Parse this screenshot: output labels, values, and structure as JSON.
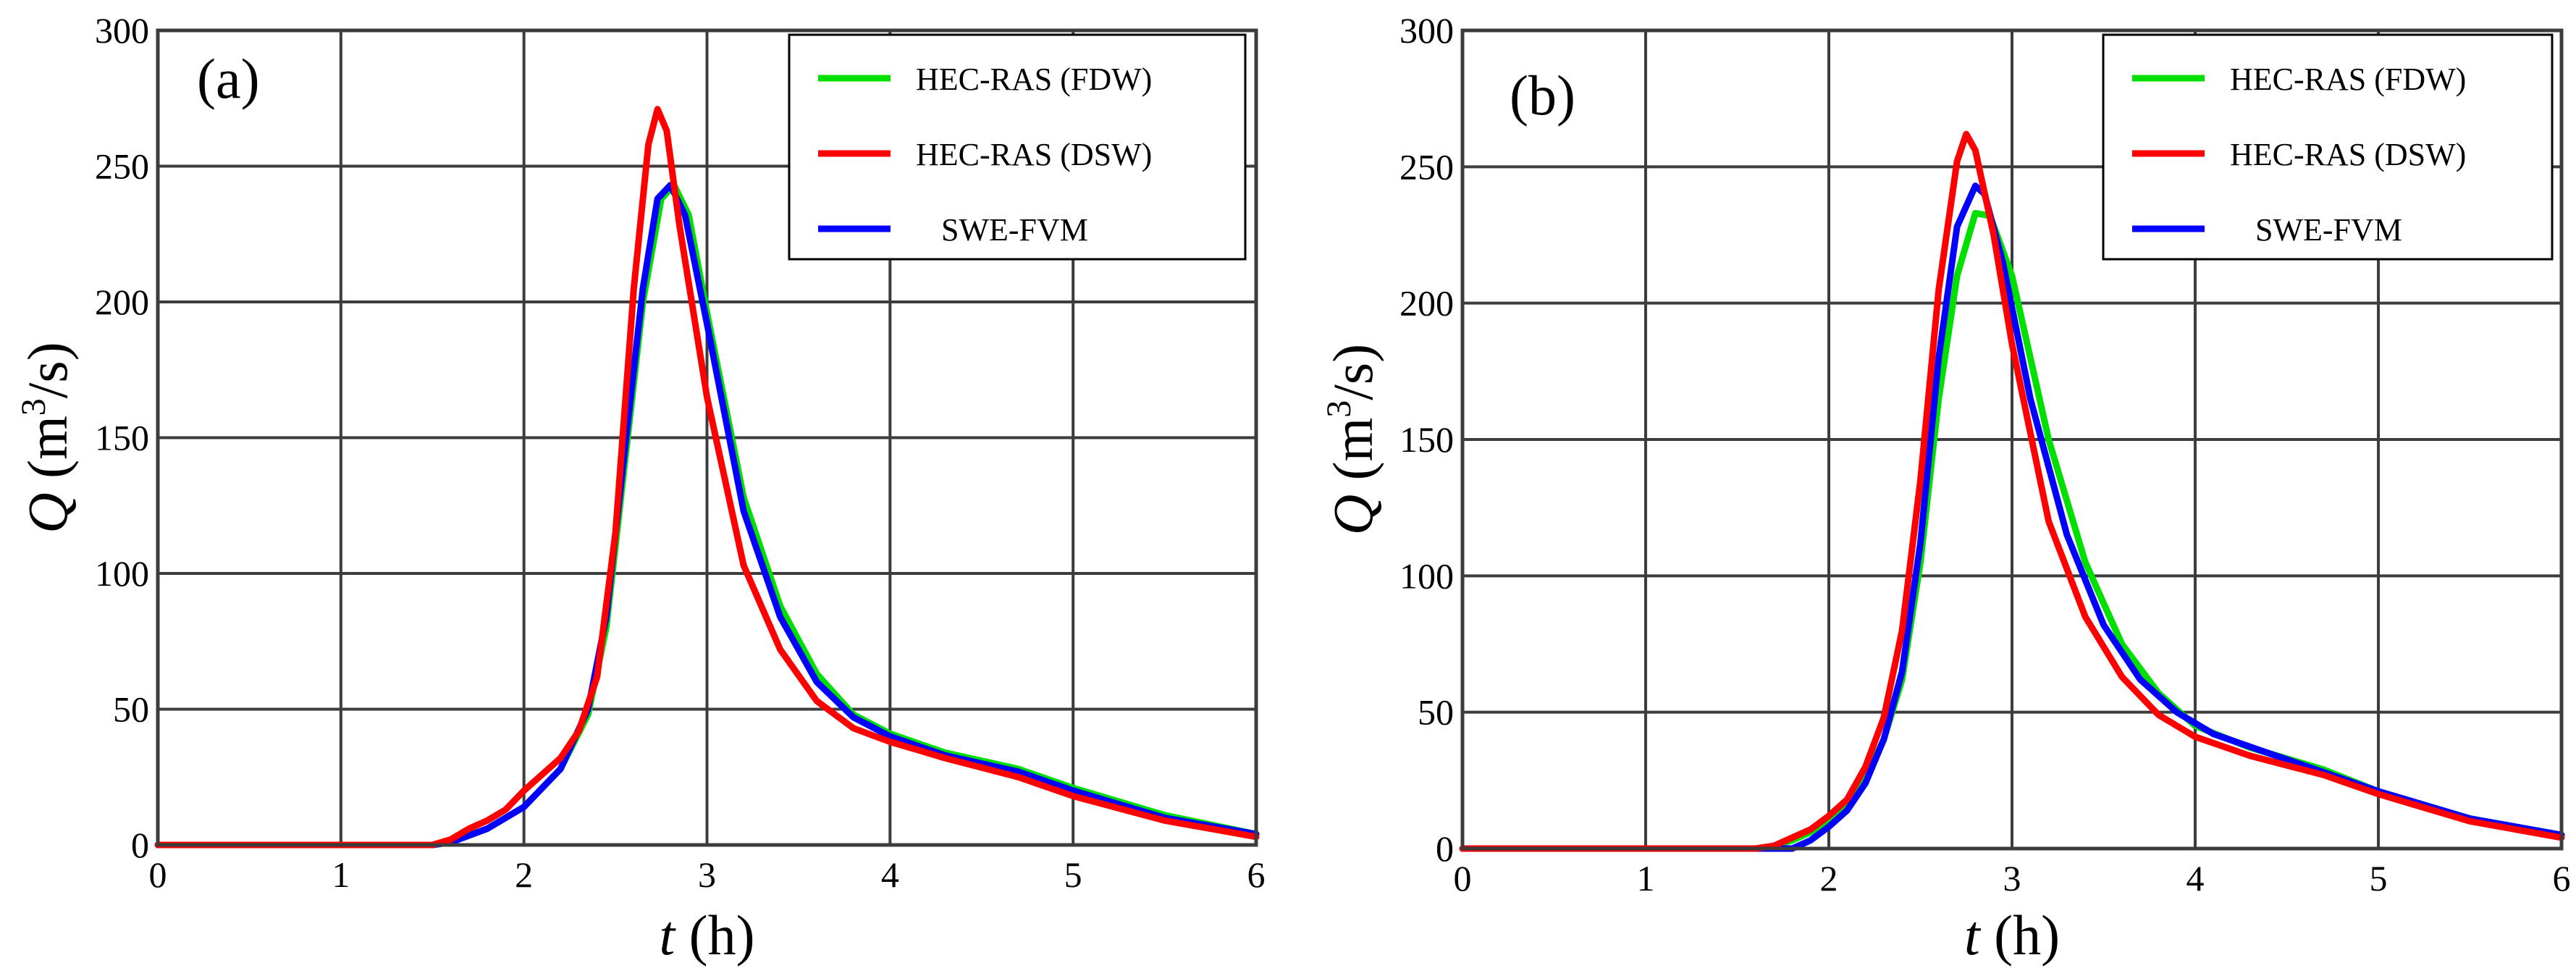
{
  "chart_data": [
    {
      "type": "line",
      "panel_label": "(a)",
      "xlabel_var": "t",
      "xlabel_unit": "(h)",
      "ylabel_var": "Q",
      "ylabel_unit_pre": "(m",
      "ylabel_unit_sup": "3",
      "ylabel_unit_post": "/s)",
      "xlim": [
        0,
        6
      ],
      "ylim": [
        0,
        300
      ],
      "xticks": [
        0,
        1,
        2,
        3,
        4,
        5,
        6
      ],
      "yticks": [
        0,
        50,
        100,
        150,
        200,
        250,
        300
      ],
      "grid": true,
      "legend_position": "top-right",
      "series": [
        {
          "name": "HEC-RAS (FDW)",
          "color": "#00e000",
          "points": [
            [
              0,
              0
            ],
            [
              1.5,
              0
            ],
            [
              1.6,
              1
            ],
            [
              1.8,
              6
            ],
            [
              2.0,
              14
            ],
            [
              2.2,
              28
            ],
            [
              2.35,
              48
            ],
            [
              2.45,
              80
            ],
            [
              2.55,
              140
            ],
            [
              2.65,
              200
            ],
            [
              2.75,
              238
            ],
            [
              2.82,
              243
            ],
            [
              2.9,
              232
            ],
            [
              3.0,
              196
            ],
            [
              3.2,
              128
            ],
            [
              3.4,
              88
            ],
            [
              3.6,
              63
            ],
            [
              3.8,
              48
            ],
            [
              4.0,
              41
            ],
            [
              4.3,
              34
            ],
            [
              4.7,
              28
            ],
            [
              5.0,
              21
            ],
            [
              5.5,
              11
            ],
            [
              6.0,
              4
            ]
          ]
        },
        {
          "name": "HEC-RAS (DSW)",
          "color": "#ff0000",
          "points": [
            [
              0,
              0
            ],
            [
              1.5,
              0
            ],
            [
              1.6,
              2
            ],
            [
              1.7,
              6
            ],
            [
              1.8,
              9
            ],
            [
              1.9,
              13
            ],
            [
              2.0,
              20
            ],
            [
              2.2,
              32
            ],
            [
              2.3,
              42
            ],
            [
              2.4,
              62
            ],
            [
              2.5,
              115
            ],
            [
              2.6,
              205
            ],
            [
              2.68,
              258
            ],
            [
              2.73,
              271
            ],
            [
              2.78,
              263
            ],
            [
              2.85,
              228
            ],
            [
              3.0,
              165
            ],
            [
              3.2,
              103
            ],
            [
              3.4,
              72
            ],
            [
              3.6,
              53
            ],
            [
              3.8,
              43
            ],
            [
              4.0,
              38
            ],
            [
              4.3,
              32
            ],
            [
              4.7,
              25
            ],
            [
              5.0,
              18
            ],
            [
              5.5,
              9
            ],
            [
              6.0,
              3
            ]
          ]
        },
        {
          "name": "SWE-FVM",
          "color": "#0000ff",
          "points": [
            [
              0,
              0
            ],
            [
              1.5,
              0
            ],
            [
              1.6,
              1
            ],
            [
              1.8,
              6
            ],
            [
              2.0,
              14
            ],
            [
              2.2,
              28
            ],
            [
              2.35,
              50
            ],
            [
              2.45,
              84
            ],
            [
              2.55,
              145
            ],
            [
              2.65,
              205
            ],
            [
              2.73,
              238
            ],
            [
              2.8,
              243
            ],
            [
              2.88,
              232
            ],
            [
              3.0,
              192
            ],
            [
              3.2,
              123
            ],
            [
              3.4,
              84
            ],
            [
              3.6,
              60
            ],
            [
              3.8,
              47
            ],
            [
              4.0,
              40
            ],
            [
              4.3,
              33
            ],
            [
              4.7,
              27
            ],
            [
              5.0,
              20
            ],
            [
              5.5,
              10
            ],
            [
              6.0,
              4
            ]
          ]
        }
      ],
      "legend_labels": [
        "HEC-RAS (FDW)",
        "HEC-RAS (DSW)",
        "SWE-FVM"
      ]
    },
    {
      "type": "line",
      "panel_label": "(b)",
      "xlabel_var": "t",
      "xlabel_unit": "(h)",
      "ylabel_var": "Q",
      "ylabel_unit_pre": "(m",
      "ylabel_unit_sup": "3",
      "ylabel_unit_post": "/s)",
      "xlim": [
        0,
        6
      ],
      "ylim": [
        0,
        300
      ],
      "xticks": [
        0,
        1,
        2,
        3,
        4,
        5,
        6
      ],
      "yticks": [
        0,
        50,
        100,
        150,
        200,
        250,
        300
      ],
      "grid": true,
      "legend_position": "top-right",
      "series": [
        {
          "name": "HEC-RAS (FDW)",
          "color": "#00e000",
          "points": [
            [
              0,
              0
            ],
            [
              1.6,
              0
            ],
            [
              1.7,
              1
            ],
            [
              1.8,
              3
            ],
            [
              1.9,
              6
            ],
            [
              2.0,
              10
            ],
            [
              2.1,
              16
            ],
            [
              2.2,
              26
            ],
            [
              2.3,
              40
            ],
            [
              2.4,
              62
            ],
            [
              2.5,
              105
            ],
            [
              2.6,
              165
            ],
            [
              2.7,
              210
            ],
            [
              2.8,
              233
            ],
            [
              2.88,
              232
            ],
            [
              3.0,
              210
            ],
            [
              3.2,
              150
            ],
            [
              3.4,
              105
            ],
            [
              3.6,
              75
            ],
            [
              3.8,
              57
            ],
            [
              4.0,
              45
            ],
            [
              4.3,
              37
            ],
            [
              4.7,
              29
            ],
            [
              5.0,
              21
            ],
            [
              5.5,
              11
            ],
            [
              6.0,
              5
            ]
          ]
        },
        {
          "name": "HEC-RAS (DSW)",
          "color": "#ff0000",
          "points": [
            [
              0,
              0
            ],
            [
              1.6,
              0
            ],
            [
              1.7,
              1
            ],
            [
              1.8,
              4
            ],
            [
              1.9,
              7
            ],
            [
              2.0,
              12
            ],
            [
              2.1,
              18
            ],
            [
              2.2,
              30
            ],
            [
              2.3,
              48
            ],
            [
              2.4,
              80
            ],
            [
              2.5,
              135
            ],
            [
              2.6,
              205
            ],
            [
              2.7,
              252
            ],
            [
              2.75,
              262
            ],
            [
              2.8,
              256
            ],
            [
              2.9,
              225
            ],
            [
              3.0,
              185
            ],
            [
              3.2,
              120
            ],
            [
              3.4,
              85
            ],
            [
              3.6,
              63
            ],
            [
              3.8,
              49
            ],
            [
              4.0,
              41
            ],
            [
              4.3,
              34
            ],
            [
              4.7,
              27
            ],
            [
              5.0,
              20
            ],
            [
              5.5,
              10
            ],
            [
              6.0,
              4
            ]
          ]
        },
        {
          "name": "SWE-FVM",
          "color": "#0000ff",
          "points": [
            [
              0,
              0
            ],
            [
              1.8,
              0
            ],
            [
              1.9,
              3
            ],
            [
              2.0,
              8
            ],
            [
              2.1,
              14
            ],
            [
              2.2,
              24
            ],
            [
              2.3,
              40
            ],
            [
              2.4,
              65
            ],
            [
              2.5,
              112
            ],
            [
              2.6,
              180
            ],
            [
              2.7,
              228
            ],
            [
              2.8,
              243
            ],
            [
              2.85,
              240
            ],
            [
              2.95,
              215
            ],
            [
              3.1,
              165
            ],
            [
              3.3,
              115
            ],
            [
              3.5,
              82
            ],
            [
              3.7,
              62
            ],
            [
              3.9,
              50
            ],
            [
              4.1,
              42
            ],
            [
              4.4,
              35
            ],
            [
              4.7,
              28
            ],
            [
              5.0,
              21
            ],
            [
              5.5,
              11
            ],
            [
              6.0,
              5
            ]
          ]
        }
      ],
      "legend_labels": [
        "HEC-RAS (FDW)",
        "HEC-RAS (DSW)",
        "SWE-FVM"
      ]
    }
  ]
}
